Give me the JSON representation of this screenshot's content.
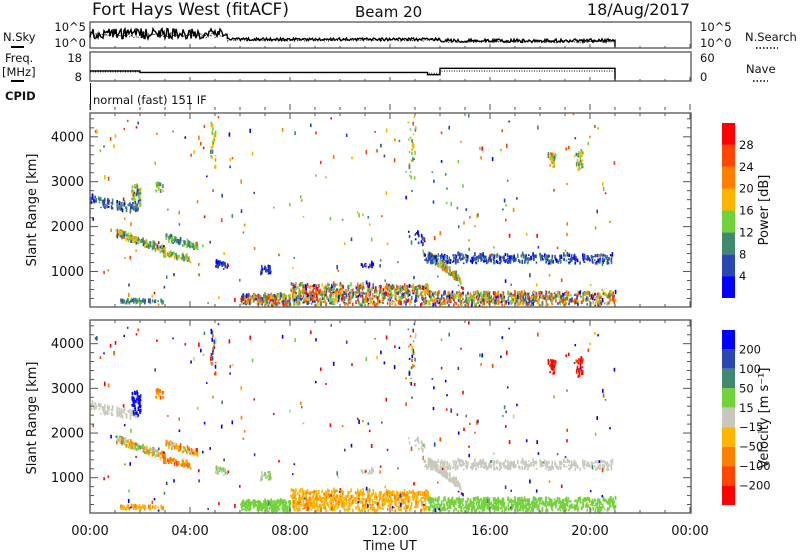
{
  "header": {
    "station": "Fort Hays West (fitACF)",
    "beam": "Beam 20",
    "date": "18/Aug/2017"
  },
  "top_panels": {
    "nsky_label": "N.Sky",
    "nsearch_label": "N.Search",
    "log_hi": "10^5",
    "log_lo": "10^0",
    "freq_label_1": "Freq.",
    "freq_label_2": "[MHz]",
    "freq_hi": "18",
    "freq_lo": "8",
    "nave_label": "Nave",
    "nave_hi": "60",
    "nave_lo": "0",
    "cpid_label": "CPID",
    "cpid_value": "normal (fast) 151 IF"
  },
  "chart_data": {
    "type": "heatmap",
    "xlabel": "Time UT",
    "ylabel": "Slant Range [km]",
    "x_range_hours": [
      0,
      24
    ],
    "y_range_km": [
      210,
      4530
    ],
    "x_ticks": [
      "00:00",
      "04:00",
      "08:00",
      "12:00",
      "16:00",
      "20:00",
      "00:00"
    ],
    "y_ticks": [
      "1000",
      "2000",
      "3000",
      "4000"
    ],
    "data_end_hour": 21,
    "power_colorbar": {
      "title": "Power [dB]",
      "labels": [
        "28",
        "24",
        "20",
        "16",
        "12",
        "8",
        "4"
      ],
      "colors_bottom_to_top": [
        "#0000ff",
        "#2a46b0",
        "#3f8a6e",
        "#72d23a",
        "#ffb400",
        "#ff7f00",
        "#ff4500",
        "#ff0000"
      ]
    },
    "velocity_colorbar": {
      "title": "Velocity [m s⁻¹]",
      "labels": [
        "200",
        "100",
        "50",
        "15",
        "−15",
        "−50",
        "−100",
        "−200"
      ],
      "bounds": [
        200,
        100,
        50,
        15,
        -15,
        -50,
        -100,
        -200
      ],
      "colors_top_to_bottom": [
        "#0000ff",
        "#2a46b0",
        "#3f8a6e",
        "#72d23a",
        "#c8c8bc",
        "#ffb400",
        "#ff7f00",
        "#ff4500",
        "#ff0000"
      ]
    },
    "echo_regions_note_columns": [
      "t_start_h",
      "t_end_h",
      "range_lo_start",
      "range_hi_start",
      "range_lo_end",
      "range_hi_end",
      "count",
      "power_db_min",
      "power_db_max",
      "vel_min",
      "vel_max"
    ],
    "echo_regions": [
      [
        0,
        1.9,
        2450,
        2650,
        2250,
        2450,
        90,
        2,
        11,
        -14,
        14
      ],
      [
        1.65,
        2.0,
        2350,
        2900,
        2350,
        2850,
        60,
        6,
        18,
        150,
        400
      ],
      [
        2.6,
        2.9,
        2700,
        2950,
        2700,
        2950,
        15,
        8,
        20,
        -120,
        -40
      ],
      [
        1.0,
        3.0,
        1750,
        1900,
        1350,
        1500,
        150,
        6,
        22,
        -90,
        60
      ],
      [
        3.0,
        4.3,
        1650,
        1800,
        1450,
        1550,
        80,
        6,
        16,
        -120,
        40
      ],
      [
        2.9,
        4.0,
        1300,
        1420,
        1180,
        1300,
        60,
        8,
        22,
        -110,
        -20
      ],
      [
        5.0,
        5.5,
        1050,
        1200,
        1000,
        1150,
        25,
        2,
        8,
        -14,
        40
      ],
      [
        6.8,
        7.2,
        900,
        1100,
        880,
        1080,
        30,
        2,
        8,
        -14,
        30
      ],
      [
        1.2,
        2.9,
        260,
        330,
        260,
        330,
        60,
        6,
        14,
        -60,
        -20
      ],
      [
        6.0,
        8.0,
        210,
        450,
        210,
        450,
        250,
        2,
        30,
        15,
        45
      ],
      [
        8.0,
        13.5,
        210,
        700,
        210,
        650,
        700,
        2,
        30,
        -60,
        -15
      ],
      [
        13.5,
        21,
        210,
        500,
        210,
        500,
        700,
        2,
        28,
        15,
        45
      ],
      [
        13.5,
        14.8,
        1250,
        1400,
        700,
        850,
        150,
        6,
        24,
        -14,
        14
      ],
      [
        13.3,
        20.9,
        1150,
        1350,
        1150,
        1350,
        350,
        2,
        10,
        -14,
        14
      ],
      [
        10.8,
        11.3,
        1050,
        1150,
        1050,
        1150,
        15,
        2,
        6,
        -14,
        14
      ],
      [
        12.7,
        13.4,
        1700,
        2000,
        1500,
        1700,
        20,
        2,
        6,
        -14,
        14
      ],
      [
        18.3,
        18.6,
        3300,
        3600,
        3300,
        3600,
        30,
        10,
        22,
        -400,
        -150
      ],
      [
        19.4,
        19.7,
        3200,
        3600,
        3250,
        3650,
        35,
        10,
        20,
        -400,
        -150
      ],
      [
        0,
        21,
        210,
        4500,
        210,
        4500,
        250,
        2,
        30,
        -400,
        400
      ],
      [
        4.8,
        5.0,
        3200,
        4300,
        3200,
        4300,
        25,
        10,
        20,
        -300,
        300
      ],
      [
        12.7,
        13.0,
        3000,
        4500,
        3000,
        4500,
        25,
        10,
        18,
        -300,
        300
      ]
    ],
    "nsky_log10_segments": [
      [
        0,
        5.5,
        3.3,
        1.2
      ],
      [
        5.5,
        14,
        2.0,
        0.3
      ],
      [
        14,
        21,
        1.7,
        0.4
      ]
    ],
    "nsearch_log10_segments": [
      [
        0,
        5.5,
        3.0,
        0.6
      ],
      [
        5.5,
        14,
        1.8,
        0.2
      ],
      [
        14,
        21,
        1.5,
        0.3
      ]
    ],
    "freq_mhz_steps": [
      [
        0,
        2,
        11.2
      ],
      [
        2,
        13.5,
        10.4
      ],
      [
        13.5,
        14,
        9.2
      ],
      [
        14,
        21,
        12.6
      ]
    ],
    "nave_steps": [
      [
        0,
        2,
        16
      ],
      [
        2,
        13.5,
        14
      ],
      [
        13.5,
        14,
        12
      ],
      [
        14,
        21,
        19
      ]
    ]
  }
}
